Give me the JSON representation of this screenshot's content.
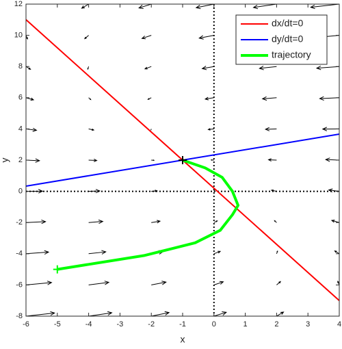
{
  "chart_data": {
    "type": "line",
    "xlabel": "x",
    "ylabel": "y",
    "xlim": [
      -6,
      4
    ],
    "ylim": [
      -8,
      12
    ],
    "xticks": [
      -6,
      -5,
      -4,
      -3,
      -2,
      -1,
      0,
      1,
      2,
      3,
      4
    ],
    "yticks": [
      -8,
      -6,
      -4,
      -2,
      0,
      2,
      4,
      6,
      8,
      10,
      12
    ],
    "grid": false,
    "zero_lines": true,
    "legend": "upper right",
    "series": [
      {
        "name": "dx/dt=0",
        "color": "#ff0000",
        "x": [
          -6,
          4
        ],
        "values": [
          11,
          -7
        ]
      },
      {
        "name": "dy/dt=0",
        "color": "#0000ff",
        "x": [
          -6,
          4
        ],
        "values": [
          0.333,
          3.667
        ]
      },
      {
        "name": "trajectory",
        "color": "#00ff00",
        "x": [
          -5,
          -2.24,
          -0.6,
          0.2,
          0.59,
          0.77,
          0.59,
          0.26,
          -0.28,
          -1
        ],
        "values": [
          -5,
          -4.12,
          -3.3,
          -2.5,
          -1.5,
          -0.9,
          0,
          0.9,
          1.5,
          2
        ]
      }
    ],
    "quiver": {
      "color": "#000000",
      "x": [
        -6,
        -6,
        -6,
        -6,
        -6,
        -6,
        -6,
        -6,
        -6,
        -6,
        -6,
        -4,
        -4,
        -4,
        -4,
        -4,
        -4,
        -4,
        -4,
        -4,
        -4,
        -4,
        -2,
        -2,
        -2,
        -2,
        -2,
        -2,
        -2,
        -2,
        -2,
        -2,
        -2,
        0,
        0,
        0,
        0,
        0,
        0,
        0,
        0,
        0,
        0,
        0,
        2,
        2,
        2,
        2,
        2,
        2,
        2,
        2,
        2,
        2,
        2,
        4,
        4,
        4,
        4,
        4,
        4,
        4,
        4,
        4,
        4,
        4
      ],
      "y": [
        -8,
        -6,
        -4,
        -2,
        0,
        2,
        4,
        6,
        8,
        10,
        12,
        -8,
        -6,
        -4,
        -2,
        0,
        2,
        4,
        6,
        8,
        10,
        12,
        -8,
        -6,
        -4,
        -2,
        0,
        2,
        4,
        6,
        8,
        10,
        12,
        -8,
        -6,
        -4,
        -2,
        0,
        2,
        4,
        6,
        8,
        10,
        12,
        -8,
        -6,
        -4,
        -2,
        0,
        2,
        4,
        6,
        8,
        10,
        12,
        -8,
        -6,
        -4,
        -2,
        0,
        2,
        4,
        6,
        8,
        10,
        12
      ],
      "u": [
        19,
        17,
        15,
        13,
        11,
        9,
        7,
        5,
        3,
        1,
        -1,
        15.4,
        13.4,
        11.4,
        9.4,
        7.4,
        5.4,
        3.4,
        1.4,
        -0.6,
        -2.6,
        -4.6,
        11.8,
        9.8,
        7.8,
        5.8,
        3.8,
        1.8,
        -0.2,
        -2.2,
        -4.2,
        -6.2,
        -8.2,
        8.2,
        6.2,
        4.2,
        2.2,
        0.2,
        -1.8,
        -3.8,
        -5.8,
        -7.8,
        -9.8,
        -11.8,
        4.6,
        2.6,
        0.6,
        -1.4,
        -3.4,
        -5.4,
        -7.4,
        -9.4,
        -11.4,
        -13.4,
        -15.4,
        1,
        -1,
        -3,
        -5,
        -7,
        -9,
        -11,
        -13,
        -15,
        -17,
        -19
      ],
      "v": [
        4.2,
        3.2,
        2.2,
        1.2,
        0.2,
        -0.8,
        -1.8,
        -2.8,
        -3.8,
        -4.8,
        -5.8,
        4.5,
        3.5,
        2.5,
        1.5,
        0.5,
        -0.5,
        -1.5,
        -2.5,
        -3.5,
        -4.5,
        -5.5,
        4.8,
        3.8,
        2.8,
        1.8,
        0.8,
        -0.2,
        -1.2,
        -2.2,
        -3.2,
        -4.2,
        -5.2,
        5.2,
        4.2,
        3.2,
        2.2,
        1.2,
        0.2,
        -0.8,
        -1.8,
        -2.8,
        -3.8,
        -4.8,
        5.5,
        4.5,
        3.5,
        2.5,
        1.5,
        0.5,
        -0.5,
        -1.5,
        -2.5,
        -3.5,
        -4.5,
        5.8,
        4.8,
        3.8,
        2.8,
        1.8,
        0.8,
        -0.2,
        -1.2,
        -2.2,
        -3.2,
        -4.2
      ]
    }
  }
}
